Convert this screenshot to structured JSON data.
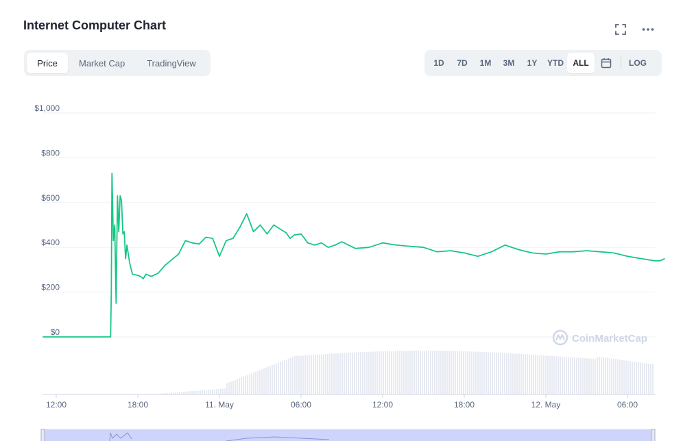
{
  "header": {
    "title": "Internet Computer Chart",
    "fullscreen_icon": "fullscreen-icon",
    "more_icon": "more-horizontal-icon"
  },
  "chart_tabs": [
    {
      "label": "Price",
      "active": true
    },
    {
      "label": "Market Cap",
      "active": false
    },
    {
      "label": "TradingView",
      "active": false
    }
  ],
  "range_tabs": [
    {
      "label": "1D",
      "active": false
    },
    {
      "label": "7D",
      "active": false
    },
    {
      "label": "1M",
      "active": false
    },
    {
      "label": "3M",
      "active": false
    },
    {
      "label": "1Y",
      "active": false
    },
    {
      "label": "YTD",
      "active": false
    },
    {
      "label": "ALL",
      "active": true
    }
  ],
  "calendar_icon": "calendar-icon",
  "log_label": "LOG",
  "watermark": "CoinMarketCap",
  "colors": {
    "line": "#16c784",
    "volume": "#cfd6e4",
    "grid": "#eff2f5",
    "navigator": "#c5cdfa"
  },
  "chart_data": {
    "type": "line",
    "title": "",
    "xlabel": "",
    "ylabel": "",
    "ylim": [
      0,
      1000
    ],
    "y_ticks": [
      "$0",
      "$200",
      "$400",
      "$600",
      "$800",
      "$1,000"
    ],
    "x_tick_labels": [
      "12:00",
      "18:00",
      "11. May",
      "06:00",
      "12:00",
      "18:00",
      "12. May",
      "06:00"
    ],
    "x_hours": [
      0,
      6,
      12,
      18,
      24,
      30,
      36,
      42
    ],
    "grid": true,
    "series": [
      {
        "x_hours": [
          -1,
          4,
          4.05,
          4.1,
          4.2,
          4.3,
          4.4,
          4.5,
          4.6,
          4.7,
          4.8,
          4.9,
          5.0,
          5.1,
          5.2,
          5.4,
          5.6,
          6.0,
          6.2,
          6.4,
          6.6,
          7.0,
          7.5,
          8.0,
          8.5,
          9.0,
          9.5,
          10.0,
          10.5,
          11.0,
          11.5,
          12.0,
          12.5,
          13.0,
          13.5,
          14.0,
          14.5,
          15.0,
          15.5,
          16.0,
          16.5,
          16.9,
          17.2,
          17.5,
          18.0,
          18.5,
          19.0,
          19.5,
          20.0,
          20.5,
          21.0,
          21.5,
          22.0,
          23.0,
          24.0,
          25.0,
          26.0,
          27.0,
          28.0,
          29.0,
          30.0,
          31.0,
          32.0,
          33.0,
          34.0,
          35.0,
          36.0,
          37.0,
          38.0,
          39.0,
          40.0,
          41.0,
          42.0,
          43.0,
          44.0,
          44.4,
          44.75
        ],
        "values": [
          0,
          0,
          200,
          730,
          430,
          500,
          150,
          630,
          470,
          630,
          610,
          460,
          470,
          350,
          410,
          330,
          280,
          275,
          270,
          260,
          280,
          270,
          285,
          320,
          345,
          370,
          430,
          420,
          415,
          445,
          440,
          360,
          430,
          440,
          490,
          550,
          470,
          500,
          460,
          500,
          480,
          465,
          440,
          455,
          460,
          420,
          410,
          420,
          400,
          410,
          425,
          410,
          395,
          400,
          420,
          410,
          405,
          400,
          380,
          385,
          375,
          360,
          380,
          410,
          390,
          375,
          370,
          380,
          380,
          385,
          380,
          375,
          360,
          350,
          340,
          340,
          350
        ]
      }
    ]
  }
}
